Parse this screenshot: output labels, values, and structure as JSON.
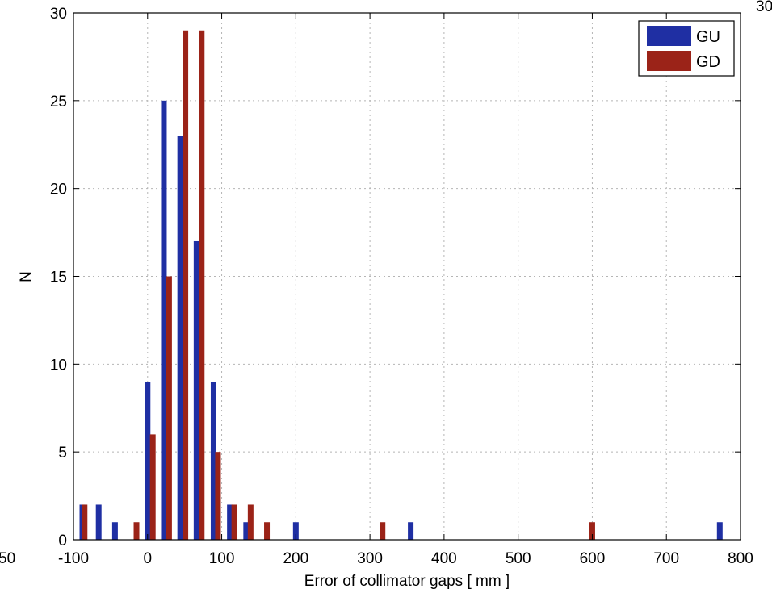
{
  "chart_data": {
    "type": "bar",
    "title": "",
    "xlabel": "Error of collimator gaps [ mm ]",
    "ylabel": "N",
    "xlim": [
      -100,
      800
    ],
    "ylim": [
      0,
      30
    ],
    "x_ticks": [
      -100,
      0,
      100,
      200,
      300,
      400,
      500,
      600,
      700,
      800
    ],
    "y_ticks": [
      0,
      5,
      10,
      15,
      20,
      25,
      30
    ],
    "x_tick_labels": [
      "-100",
      "0",
      "100",
      "200",
      "300",
      "400",
      "500",
      "600",
      "700",
      "800"
    ],
    "y_tick_labels": [
      "0",
      "5",
      "10",
      "15",
      "20",
      "25",
      "30"
    ],
    "grid": true,
    "legend_position": "top-right",
    "series": [
      {
        "name": "GU",
        "color": "#1f2fa3",
        "points": [
          {
            "x": -88,
            "y": 2
          },
          {
            "x": -66,
            "y": 2
          },
          {
            "x": -44,
            "y": 1
          },
          {
            "x": 0,
            "y": 9
          },
          {
            "x": 22,
            "y": 25
          },
          {
            "x": 44,
            "y": 23
          },
          {
            "x": 66,
            "y": 17
          },
          {
            "x": 89,
            "y": 9
          },
          {
            "x": 111,
            "y": 2
          },
          {
            "x": 133,
            "y": 1
          },
          {
            "x": 200,
            "y": 1
          },
          {
            "x": 355,
            "y": 1
          },
          {
            "x": 772,
            "y": 1
          }
        ]
      },
      {
        "name": "GD",
        "color": "#9b2318",
        "points": [
          {
            "x": -85,
            "y": 2
          },
          {
            "x": -15,
            "y": 1
          },
          {
            "x": 7,
            "y": 6
          },
          {
            "x": 29,
            "y": 15
          },
          {
            "x": 51,
            "y": 29
          },
          {
            "x": 73,
            "y": 29
          },
          {
            "x": 95,
            "y": 5
          },
          {
            "x": 117,
            "y": 2
          },
          {
            "x": 139,
            "y": 2
          },
          {
            "x": 161,
            "y": 1
          },
          {
            "x": 317,
            "y": 1
          },
          {
            "x": 600,
            "y": 1
          }
        ]
      }
    ],
    "edge_labels": {
      "left": "50",
      "right": "30"
    }
  }
}
